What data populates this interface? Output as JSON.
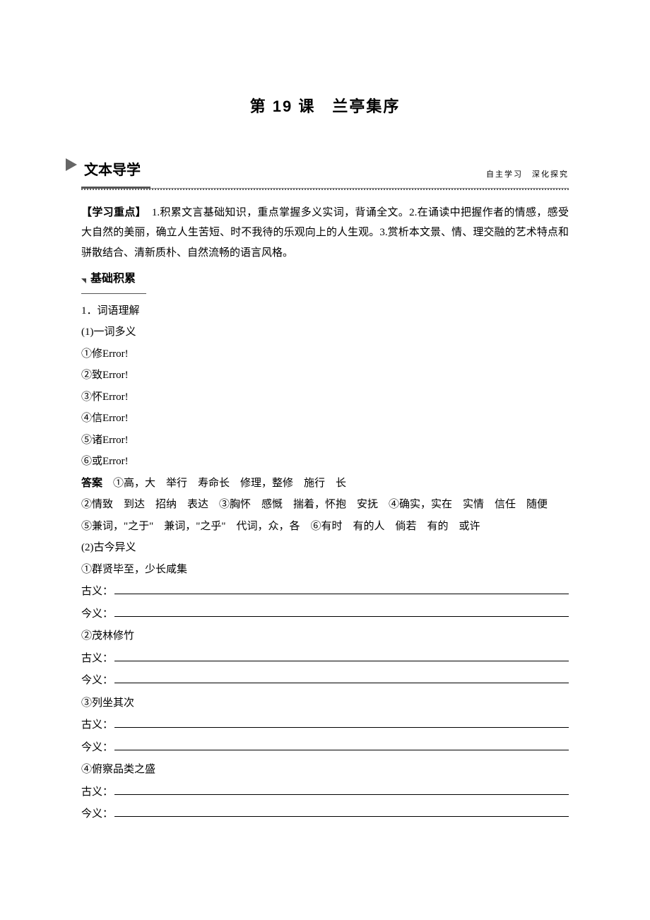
{
  "title": "第 19 课　兰亭集序",
  "section_header": {
    "main": "文本导学",
    "sub": "自主学习　深化探究"
  },
  "objectives": {
    "lead": "【学习重点】",
    "text": "　1.积累文言基础知识，重点掌握多义实词，背诵全文。2.在诵读中把握作者的情感，感受大自然的美丽，确立人生苦短、时不我待的乐观向上的人生观。3.赏析本文景、情、理交融的艺术特点和骈散结合、清新质朴、自然流畅的语言风格。"
  },
  "sub_section": "基础积累",
  "q1": {
    "head": "1．词语理解",
    "a_head": "(1)一词多义",
    "items": [
      "①修Error!",
      "②致Error!",
      "③怀Error!",
      "④信Error!",
      "⑤诸Error!",
      "⑥或Error!"
    ],
    "answer_lead": "答案",
    "answers": [
      "　①高，大　举行　寿命长　修理，整修　施行　长",
      "②情致　到达　招纳　表达　③胸怀　感慨　揣着，怀抱　安抚　④确实，实在　实情　信任　随便",
      "⑤兼词，\"之于\"　兼词，\"之乎\"　代词，众，各　⑥有时　有的人　倘若　有的　或许"
    ],
    "b_head": "(2)古今异义",
    "b_items": [
      {
        "prompt": "①群贤毕至，少长咸集",
        "rows": [
          "古义：",
          "今义："
        ]
      },
      {
        "prompt": "②茂林修竹",
        "rows": [
          "古义：",
          "今义："
        ]
      },
      {
        "prompt": "③列坐其次",
        "rows": [
          "古义：",
          "今义："
        ]
      },
      {
        "prompt": "④俯察品类之盛",
        "rows": [
          "古义：",
          "今义："
        ]
      }
    ]
  }
}
